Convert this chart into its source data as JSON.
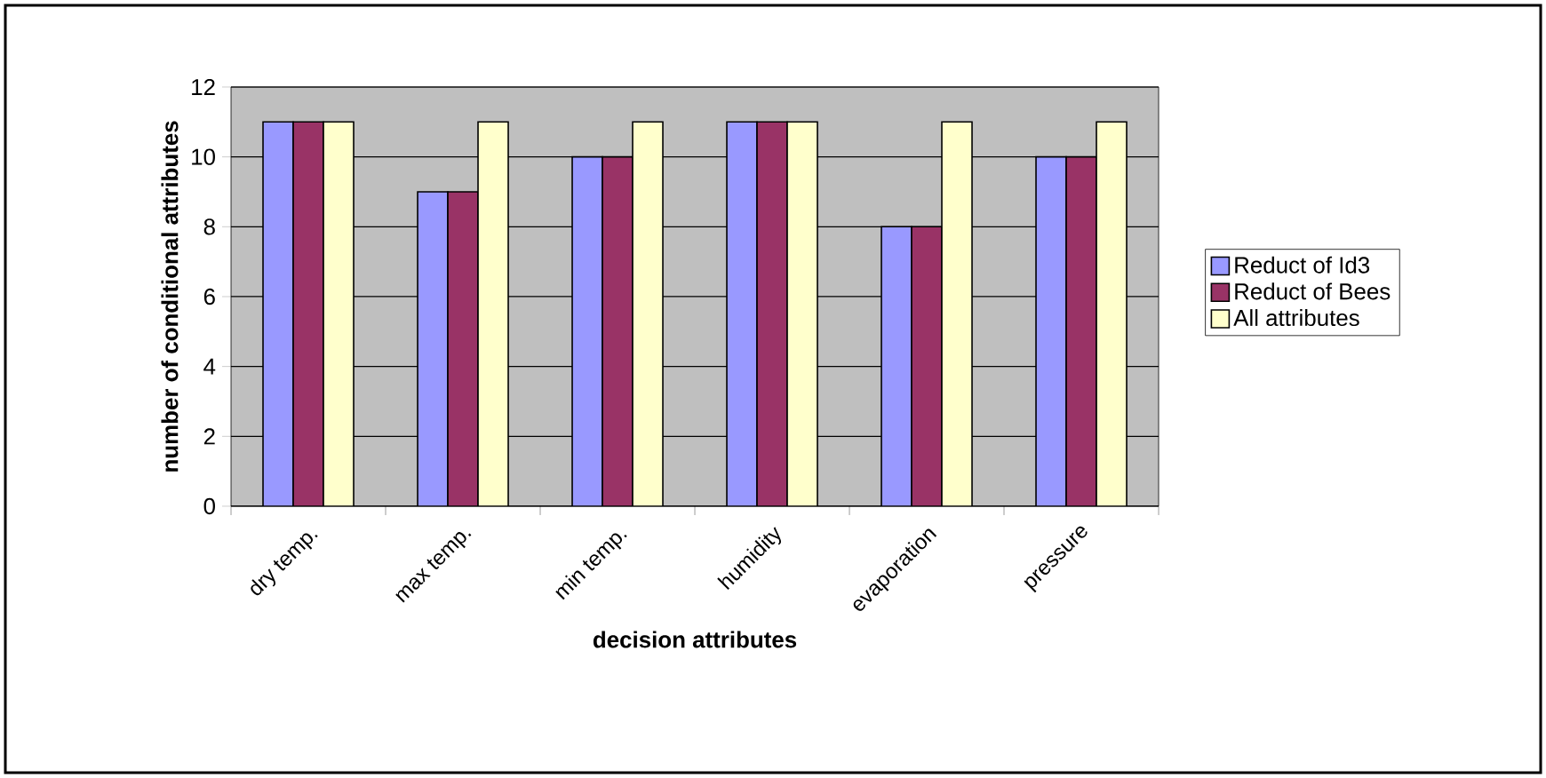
{
  "chart_data": {
    "type": "bar",
    "xlabel": "decision attributes",
    "ylabel": "number of conditional attributes",
    "categories": [
      "dry temp.",
      "max temp.",
      "min temp.",
      "humidity",
      "evaporation",
      "pressure"
    ],
    "series": [
      {
        "name": "Reduct of Id3",
        "color": "#9999ff",
        "values": [
          11,
          9,
          10,
          11,
          8,
          10
        ]
      },
      {
        "name": "Reduct of Bees",
        "color": "#993366",
        "values": [
          11,
          9,
          10,
          11,
          8,
          10
        ]
      },
      {
        "name": "All attributes",
        "color": "#ffffcc",
        "values": [
          11,
          11,
          11,
          11,
          11,
          11
        ]
      }
    ],
    "ylim": [
      0,
      12
    ],
    "yticks": [
      0,
      2,
      4,
      6,
      8,
      10,
      12
    ],
    "grid": "y",
    "legend": "right"
  }
}
